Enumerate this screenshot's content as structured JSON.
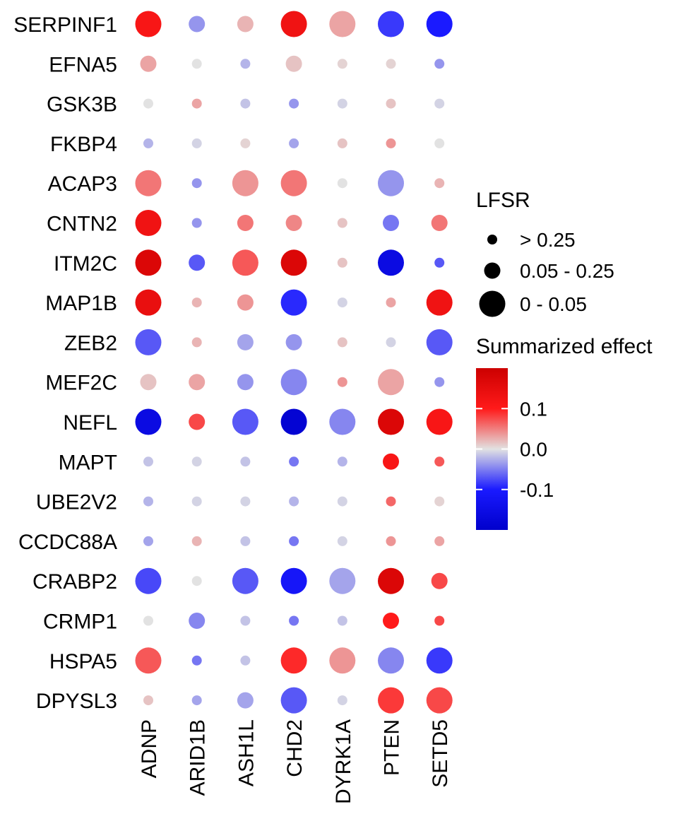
{
  "chart_data": {
    "type": "heatmap",
    "encoding": "dot plot: circle size = LFSR bin, circle color = summarized effect",
    "rows": [
      "SERPINF1",
      "EFNA5",
      "GSK3B",
      "FKBP4",
      "ACAP3",
      "CNTN2",
      "ITM2C",
      "MAP1B",
      "ZEB2",
      "MEF2C",
      "NEFL",
      "MAPT",
      "UBE2V2",
      "CCDC88A",
      "CRABP2",
      "CRMP1",
      "HSPA5",
      "DPYSL3"
    ],
    "columns": [
      "ADNP",
      "ARID1B",
      "ASH1L",
      "CHD2",
      "DYRK1A",
      "PTEN",
      "SETD5"
    ],
    "effect": [
      [
        0.14,
        -0.05,
        0.03,
        0.15,
        0.04,
        -0.11,
        -0.13
      ],
      [
        0.04,
        0.0,
        -0.03,
        0.02,
        0.01,
        0.01,
        -0.05
      ],
      [
        0.0,
        0.04,
        -0.02,
        -0.05,
        -0.01,
        0.02,
        -0.01
      ],
      [
        -0.03,
        -0.01,
        0.01,
        -0.04,
        0.02,
        0.05,
        0.0
      ],
      [
        0.07,
        -0.05,
        0.05,
        0.07,
        0.0,
        -0.05,
        0.03
      ],
      [
        0.15,
        -0.05,
        0.07,
        0.06,
        0.02,
        -0.07,
        0.07
      ],
      [
        0.18,
        -0.09,
        0.09,
        0.18,
        0.02,
        -0.17,
        -0.09
      ],
      [
        0.16,
        0.03,
        0.05,
        -0.12,
        -0.01,
        0.04,
        0.15
      ],
      [
        -0.09,
        0.03,
        -0.04,
        -0.05,
        0.02,
        -0.01,
        -0.09
      ],
      [
        0.02,
        0.04,
        -0.05,
        -0.06,
        0.05,
        0.04,
        -0.05
      ],
      [
        -0.17,
        0.1,
        -0.09,
        -0.19,
        -0.06,
        0.18,
        0.14
      ],
      [
        -0.02,
        -0.01,
        -0.02,
        -0.07,
        -0.03,
        0.14,
        0.09
      ],
      [
        -0.03,
        -0.01,
        -0.01,
        -0.03,
        -0.01,
        0.08,
        0.01
      ],
      [
        -0.04,
        0.03,
        -0.02,
        -0.07,
        -0.01,
        0.05,
        0.04
      ],
      [
        -0.1,
        0.0,
        -0.09,
        -0.14,
        -0.04,
        0.18,
        0.1
      ],
      [
        0.0,
        -0.06,
        -0.02,
        -0.07,
        -0.02,
        0.13,
        0.1
      ],
      [
        0.09,
        -0.07,
        -0.02,
        0.12,
        0.05,
        -0.06,
        -0.11
      ],
      [
        0.02,
        -0.04,
        -0.04,
        -0.09,
        -0.01,
        0.11,
        0.1
      ]
    ],
    "lfsr_bin": [
      [
        2,
        1,
        1,
        2,
        2,
        2,
        2
      ],
      [
        1,
        0,
        0,
        1,
        0,
        0,
        0
      ],
      [
        0,
        0,
        0,
        0,
        0,
        0,
        0
      ],
      [
        0,
        0,
        0,
        0,
        0,
        0,
        0
      ],
      [
        2,
        0,
        2,
        2,
        0,
        2,
        0
      ],
      [
        2,
        0,
        1,
        1,
        0,
        1,
        1
      ],
      [
        2,
        1,
        2,
        2,
        0,
        2,
        0
      ],
      [
        2,
        0,
        1,
        2,
        0,
        0,
        2
      ],
      [
        2,
        0,
        1,
        1,
        0,
        0,
        2
      ],
      [
        1,
        1,
        1,
        2,
        0,
        2,
        0
      ],
      [
        2,
        1,
        2,
        2,
        2,
        2,
        2
      ],
      [
        0,
        0,
        0,
        0,
        0,
        1,
        0
      ],
      [
        0,
        0,
        0,
        0,
        0,
        0,
        0
      ],
      [
        0,
        0,
        0,
        0,
        0,
        0,
        0
      ],
      [
        2,
        0,
        2,
        2,
        2,
        2,
        1
      ],
      [
        0,
        1,
        0,
        0,
        0,
        1,
        0
      ],
      [
        2,
        0,
        0,
        2,
        2,
        2,
        2
      ],
      [
        0,
        0,
        1,
        2,
        0,
        2,
        2
      ]
    ],
    "size_legend": {
      "title": "LFSR",
      "entries": [
        "> 0.25",
        "0.05 - 0.25",
        "0 - 0.05"
      ]
    },
    "color_legend": {
      "title": "Summarized effect",
      "ticks": [
        {
          "value": 0.1,
          "label": "0.1"
        },
        {
          "value": 0.0,
          "label": "0.0"
        },
        {
          "value": -0.1,
          "label": "-0.1"
        }
      ],
      "range": [
        -0.2,
        0.2
      ],
      "colors": {
        "low": "#0000dd",
        "mid": "#e2e2e2",
        "high": "#dd0000",
        "peak_red": "#ff1a1a",
        "peak_blue": "#1a1aff"
      }
    }
  }
}
